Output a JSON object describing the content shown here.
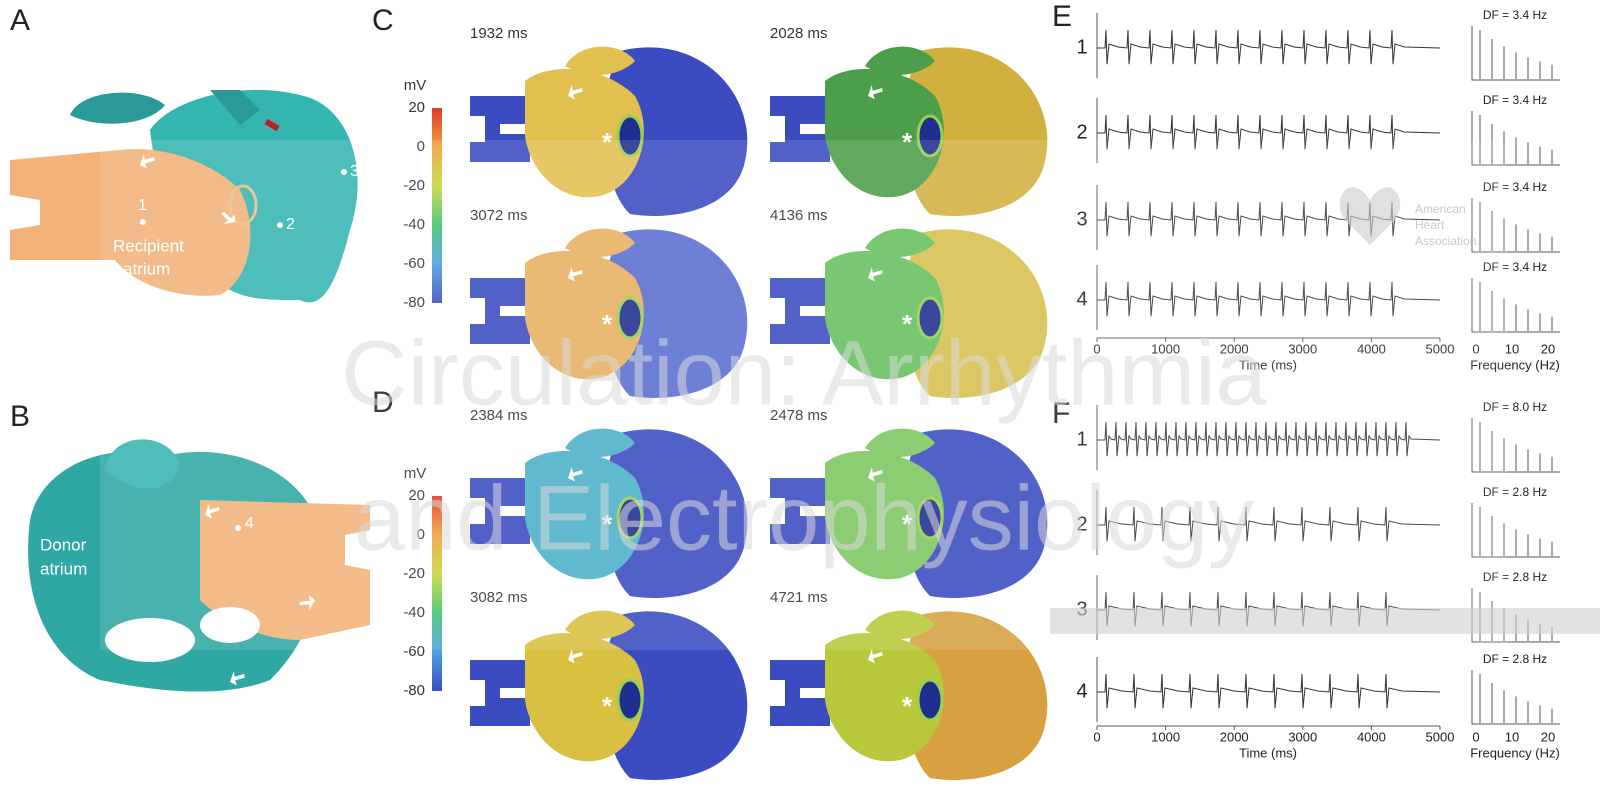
{
  "panels": {
    "A": {
      "label": "A",
      "points": [
        "1",
        "2",
        "3"
      ],
      "region": [
        "Recipient",
        "atrium"
      ]
    },
    "B": {
      "label": "B",
      "points": [
        "4"
      ],
      "region": [
        "Donor",
        "atrium"
      ]
    },
    "C": {
      "label": "C",
      "unit": "mV",
      "colorbar_ticks": [
        20,
        0,
        -20,
        -40,
        -60,
        -80
      ],
      "times": [
        "1932 ms",
        "2028 ms",
        "3072 ms",
        "4136 ms"
      ]
    },
    "D": {
      "label": "D",
      "unit": "mV",
      "colorbar_ticks": [
        20,
        0,
        -20,
        -40,
        -60,
        -80
      ],
      "times": [
        "2384 ms",
        "2478 ms",
        "3082 ms",
        "4721 ms"
      ]
    },
    "E": {
      "label": "E",
      "channels": [
        "1",
        "2",
        "3",
        "4"
      ],
      "df": [
        "DF = 3.4 Hz",
        "DF = 3.4 Hz",
        "DF = 3.4 Hz",
        "DF = 3.4 Hz"
      ],
      "time_ticks": [
        0,
        1000,
        2000,
        3000,
        4000,
        5000
      ],
      "time_label": "Time (ms)",
      "freq_ticks": [
        0,
        10,
        20
      ],
      "freq_label": "Frequency (Hz)"
    },
    "F": {
      "label": "F",
      "channels": [
        "1",
        "2",
        "3",
        "4"
      ],
      "df": [
        "DF = 8.0 Hz",
        "DF = 2.8 Hz",
        "DF = 2.8 Hz",
        "DF = 2.8 Hz"
      ],
      "time_ticks": [
        0,
        1000,
        2000,
        3000,
        4000,
        5000
      ],
      "time_label": "Time (ms)",
      "freq_ticks": [
        0,
        10,
        20
      ],
      "freq_label": "Frequency (Hz)"
    }
  },
  "asterisk": "*",
  "watermark": {
    "journal": [
      "Circulation: Arrhythmia",
      "and Electrophysiology"
    ],
    "logo": [
      "American",
      "Heart",
      "Association."
    ]
  }
}
